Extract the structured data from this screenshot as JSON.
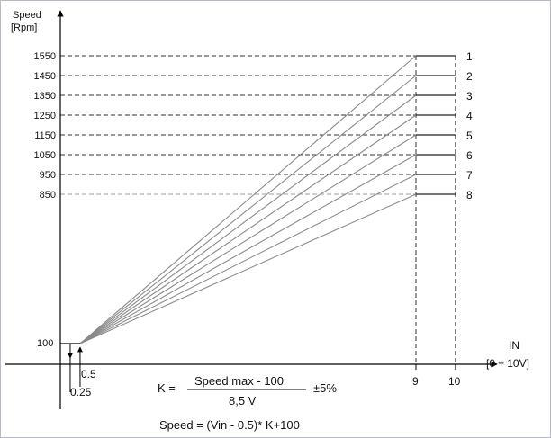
{
  "chart_data": {
    "type": "line",
    "y_axis_title": [
      "Speed",
      "[Rpm]"
    ],
    "x_axis_title": [
      "IN",
      "[0 ÷ 10V]"
    ],
    "y_ticks": [
      850,
      950,
      1050,
      1150,
      1250,
      1350,
      1450,
      1550
    ],
    "y_low_label": "100",
    "x_tick_labels": [
      "0.5",
      "0.25",
      "9",
      "10"
    ],
    "x_start": 0.5,
    "x_end": 9,
    "x_limit": 10,
    "y_start": 100,
    "series": [
      {
        "name": "1",
        "end_speed": 1550
      },
      {
        "name": "2",
        "end_speed": 1450
      },
      {
        "name": "3",
        "end_speed": 1350
      },
      {
        "name": "4",
        "end_speed": 1250
      },
      {
        "name": "5",
        "end_speed": 1150
      },
      {
        "name": "6",
        "end_speed": 1050
      },
      {
        "name": "7",
        "end_speed": 950
      },
      {
        "name": "8",
        "end_speed": 850
      }
    ],
    "formula": {
      "k_label": "K =",
      "numerator": "Speed max - 100",
      "denominator": "8,5 V",
      "tolerance": "±5%",
      "speed": "Speed = (Vin - 0.5)* K+100"
    }
  }
}
